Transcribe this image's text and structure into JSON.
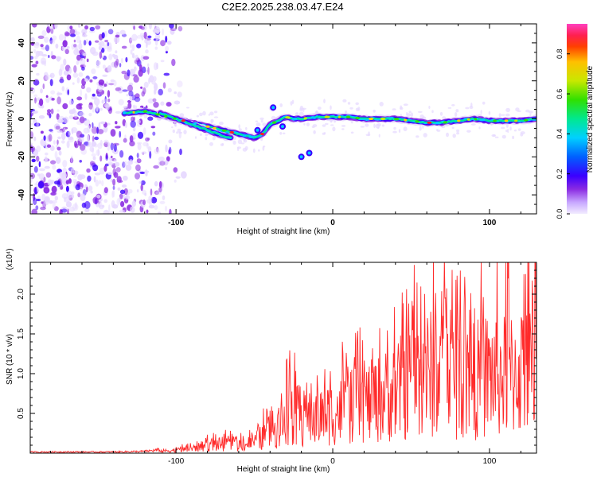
{
  "title": "C2E2.2025.238.03.47.E24",
  "chart_data": [
    {
      "type": "heatmap",
      "xlabel": "Height of straight line (km)",
      "ylabel": "Frequency (Hz)",
      "xlim": [
        -193,
        130
      ],
      "ylim": [
        -50,
        50
      ],
      "xticks": [
        -100,
        0,
        100
      ],
      "yticks": [
        -40,
        -20,
        0,
        20,
        40
      ],
      "colorbar": {
        "label": "Normalized spectral amplitude",
        "range": [
          0,
          0.95
        ],
        "ticks": [
          "0.0",
          "0.2",
          "0.4",
          "0.6",
          "0.8"
        ],
        "tick_values": [
          0.0,
          0.2,
          0.4,
          0.6,
          0.8
        ],
        "colors": [
          "#e6d8ff",
          "#8a2be2",
          "#3a00ff",
          "#0050ff",
          "#00c8ff",
          "#00e890",
          "#30e000",
          "#c8e800",
          "#ffd000",
          "#ff7000",
          "#ff2020",
          "#ff40c0"
        ]
      },
      "ridge": {
        "x": [
          -133,
          -120,
          -110,
          -100,
          -90,
          -80,
          -70,
          -60,
          -55,
          -50,
          -45,
          -40,
          -35,
          -30,
          -25,
          -20,
          -10,
          0,
          10,
          20,
          30,
          40,
          50,
          60,
          70,
          80,
          90,
          100,
          110,
          120,
          130
        ],
        "y": [
          3,
          4,
          2,
          0,
          -2,
          -4,
          -6,
          -8,
          -9,
          -10,
          -8,
          -3,
          -1,
          1,
          0,
          0,
          1,
          1,
          1,
          0,
          0,
          0,
          -1,
          -2,
          -2,
          -1,
          0,
          -1,
          -1,
          -1,
          0
        ]
      },
      "branch": {
        "x": [
          -110,
          -100,
          -90,
          -80,
          -70,
          -65
        ],
        "y": [
          3,
          0,
          -3,
          -6,
          -9,
          -10
        ]
      },
      "noise_region_x": [
        -193,
        -105
      ]
    },
    {
      "type": "line",
      "xlabel": "Height of straight line (km)",
      "ylabel": "SNR (10 * v/v)",
      "scale_label": "(x10⁴)",
      "xlim": [
        -193,
        130
      ],
      "ylim": [
        0,
        2.4
      ],
      "xticks": [
        -100,
        0,
        100
      ],
      "yticks": [
        "0.5",
        "1.0",
        "1.5",
        "2.0"
      ],
      "ytick_values": [
        0.5,
        1.0,
        1.5,
        2.0
      ],
      "color": "#ff2a2a",
      "envelope": {
        "x": [
          -193,
          -140,
          -120,
          -100,
          -90,
          -80,
          -70,
          -60,
          -50,
          -45,
          -40,
          -35,
          -30,
          -25,
          -20,
          -15,
          -10,
          0,
          10,
          20,
          30,
          40,
          50,
          60,
          70,
          80,
          90,
          100,
          110,
          120,
          130
        ],
        "y": [
          0.02,
          0.02,
          0.03,
          0.08,
          0.12,
          0.2,
          0.25,
          0.22,
          0.3,
          0.45,
          0.6,
          0.75,
          0.95,
          1.2,
          0.85,
          0.95,
          1.0,
          1.1,
          1.25,
          1.35,
          1.5,
          1.7,
          2.0,
          2.2,
          2.15,
          2.05,
          2.0,
          2.2,
          2.1,
          2.3,
          2.2
        ]
      }
    }
  ]
}
